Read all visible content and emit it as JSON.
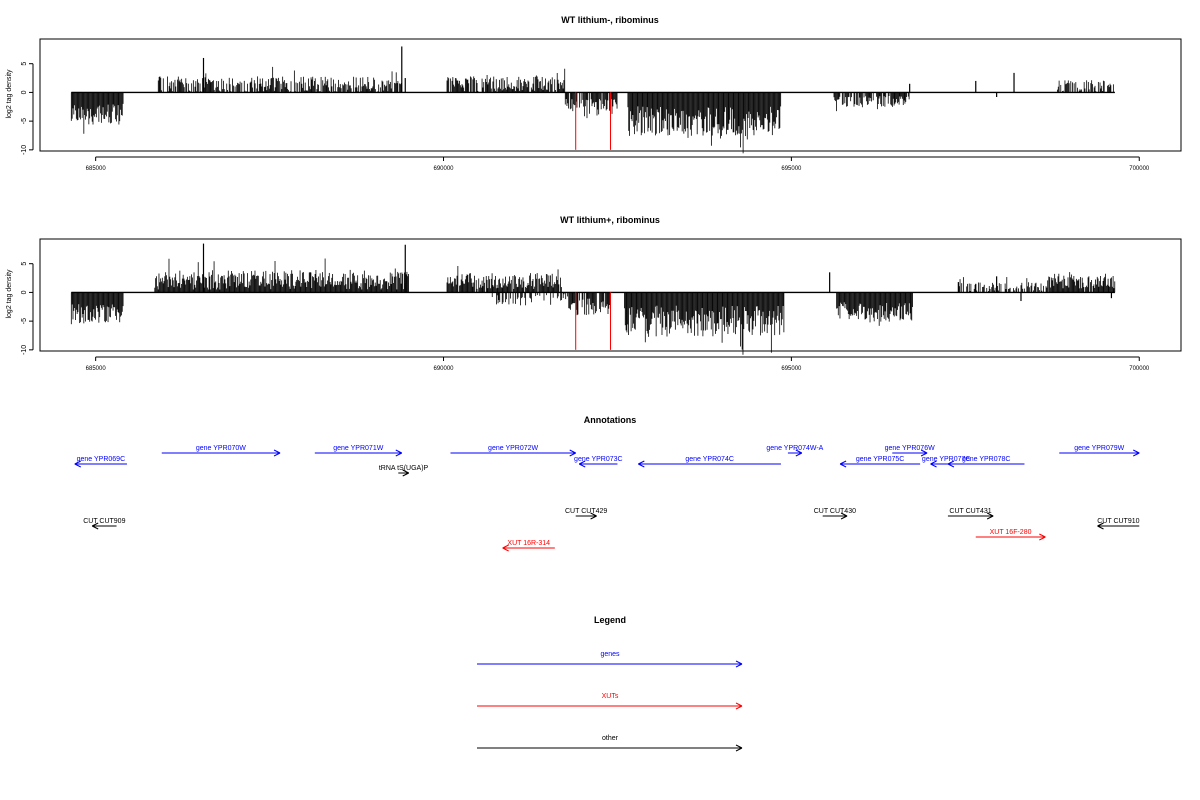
{
  "colors": {
    "genes": "#0000ff",
    "xut": "#ff0000",
    "other": "#000000",
    "axis": "#000000",
    "marker": "#ff0000"
  },
  "chart_data": [
    {
      "type": "bar",
      "title": "WT lithium-, ribominus",
      "ylabel": "log2 tag density",
      "xlim": [
        684200,
        700600
      ],
      "ylim": [
        -10.2,
        9.3
      ],
      "xticks": [
        685000,
        690000,
        695000,
        700000
      ],
      "xtick_labels": [
        "685000",
        "690000",
        "695000",
        "700000"
      ],
      "yticks": [
        5,
        0,
        -5,
        -10
      ],
      "ytick_labels": [
        "5",
        "0",
        "-5",
        "-10"
      ],
      "baseline_range": [
        684650,
        699650
      ],
      "markers": [
        691900,
        692400
      ],
      "segments": [
        {
          "start": 684650,
          "end": 685400,
          "sign": -1,
          "mean": 3.8,
          "amp": 1.8,
          "density": 1.0
        },
        {
          "start": 685900,
          "end": 689400,
          "sign": 1,
          "mean": 1.4,
          "amp": 1.4,
          "density": 0.8
        },
        {
          "start": 690050,
          "end": 691750,
          "sign": 1,
          "mean": 1.5,
          "amp": 1.3,
          "density": 0.85
        },
        {
          "start": 691750,
          "end": 692500,
          "sign": -1,
          "mean": 2.0,
          "amp": 1.3,
          "density": 0.8
        },
        {
          "start": 692650,
          "end": 694850,
          "sign": -1,
          "mean": 5.0,
          "amp": 2.6,
          "density": 1.0
        },
        {
          "start": 695600,
          "end": 696700,
          "sign": -1,
          "mean": 1.6,
          "amp": 1.0,
          "density": 0.8
        },
        {
          "start": 698800,
          "end": 699650,
          "sign": 1,
          "mean": 1.2,
          "amp": 1.0,
          "density": 0.6
        }
      ],
      "spikes": [
        {
          "x": 686550,
          "y": 6.0
        },
        {
          "x": 689400,
          "y": 8.0
        },
        {
          "x": 689450,
          "y": 2.5
        },
        {
          "x": 696700,
          "y": 1.5
        },
        {
          "x": 697650,
          "y": 2.0
        },
        {
          "x": 698200,
          "y": 3.4
        },
        {
          "x": 697950,
          "y": -0.8
        }
      ]
    },
    {
      "type": "bar",
      "title": "WT lithium+, ribominus",
      "ylabel": "log2 tag density",
      "xlim": [
        684200,
        700600
      ],
      "ylim": [
        -10.2,
        9.3
      ],
      "xticks": [
        685000,
        690000,
        695000,
        700000
      ],
      "xtick_labels": [
        "685000",
        "690000",
        "695000",
        "700000"
      ],
      "yticks": [
        5,
        0,
        -5,
        -10
      ],
      "ytick_labels": [
        "5",
        "0",
        "-5",
        "-10"
      ],
      "baseline_range": [
        684650,
        699650
      ],
      "markers": [
        691900,
        692400
      ],
      "segments": [
        {
          "start": 684650,
          "end": 685400,
          "sign": -1,
          "mean": 3.8,
          "amp": 1.8,
          "density": 1.0
        },
        {
          "start": 685850,
          "end": 689500,
          "sign": 1,
          "mean": 2.2,
          "amp": 1.7,
          "density": 1.0
        },
        {
          "start": 690050,
          "end": 691700,
          "sign": 1,
          "mean": 2.0,
          "amp": 1.4,
          "density": 0.95
        },
        {
          "start": 690700,
          "end": 691800,
          "sign": -1,
          "mean": 1.3,
          "amp": 1.0,
          "density": 0.5
        },
        {
          "start": 691800,
          "end": 692400,
          "sign": -1,
          "mean": 2.5,
          "amp": 1.5,
          "density": 0.8
        },
        {
          "start": 692600,
          "end": 694900,
          "sign": -1,
          "mean": 5.0,
          "amp": 2.7,
          "density": 1.0
        },
        {
          "start": 695650,
          "end": 696750,
          "sign": -1,
          "mean": 3.4,
          "amp": 1.7,
          "density": 1.0
        },
        {
          "start": 697400,
          "end": 698700,
          "sign": 1,
          "mean": 1.0,
          "amp": 0.8,
          "density": 0.6
        },
        {
          "start": 698700,
          "end": 699650,
          "sign": 1,
          "mean": 2.0,
          "amp": 1.3,
          "density": 0.95
        }
      ],
      "spikes": [
        {
          "x": 686550,
          "y": 8.5
        },
        {
          "x": 689450,
          "y": 8.3
        },
        {
          "x": 695550,
          "y": 3.5
        },
        {
          "x": 697400,
          "y": 1.8
        },
        {
          "x": 697650,
          "y": 1.5
        },
        {
          "x": 697950,
          "y": 2.8
        },
        {
          "x": 698300,
          "y": -1.5
        },
        {
          "x": 699600,
          "y": -1.0
        }
      ]
    }
  ],
  "annotations": {
    "title": "Annotations",
    "xlim": [
      684200,
      700600
    ],
    "features": [
      {
        "label": "gene YPR069C",
        "kind": "genes",
        "start": 684700,
        "end": 685450,
        "strand": "-",
        "row": 2
      },
      {
        "label": "gene YPR070W",
        "kind": "genes",
        "start": 685950,
        "end": 687650,
        "strand": "+",
        "row": 1
      },
      {
        "label": "gene YPR071W",
        "kind": "genes",
        "start": 688150,
        "end": 689400,
        "strand": "+",
        "row": 1
      },
      {
        "label": "tRNA tS(UGA)P",
        "kind": "other",
        "start": 689350,
        "end": 689500,
        "strand": "+",
        "row": 3
      },
      {
        "label": "gene YPR072W",
        "kind": "genes",
        "start": 690100,
        "end": 691900,
        "strand": "+",
        "row": 1
      },
      {
        "label": "gene YPR073C",
        "kind": "genes",
        "start": 691950,
        "end": 692500,
        "strand": "-",
        "row": 2
      },
      {
        "label": "gene YPR074C",
        "kind": "genes",
        "start": 692800,
        "end": 694850,
        "strand": "-",
        "row": 2
      },
      {
        "label": "gene YPR074W-A",
        "kind": "genes",
        "start": 694950,
        "end": 695150,
        "strand": "+",
        "row": 1
      },
      {
        "label": "gene YPR075C",
        "kind": "genes",
        "start": 695700,
        "end": 696850,
        "strand": "-",
        "row": 2
      },
      {
        "label": "gene YPR076W",
        "kind": "genes",
        "start": 696450,
        "end": 696950,
        "strand": "+",
        "row": 1
      },
      {
        "label": "gene YPR077C",
        "kind": "genes",
        "start": 697000,
        "end": 697450,
        "strand": "-",
        "row": 2
      },
      {
        "label": "gene YPR078C",
        "kind": "genes",
        "start": 697250,
        "end": 698350,
        "strand": "-",
        "row": 2
      },
      {
        "label": "gene YPR079W",
        "kind": "genes",
        "start": 698850,
        "end": 700000,
        "strand": "+",
        "row": 1
      },
      {
        "label": "CUT CUT909",
        "kind": "other",
        "start": 684950,
        "end": 685300,
        "strand": "-",
        "row": 5
      },
      {
        "label": "CUT CUT429",
        "kind": "other",
        "start": 691900,
        "end": 692200,
        "strand": "+",
        "row": 4
      },
      {
        "label": "CUT CUT430",
        "kind": "other",
        "start": 695450,
        "end": 695800,
        "strand": "+",
        "row": 4
      },
      {
        "label": "CUT CUT431",
        "kind": "other",
        "start": 697250,
        "end": 697900,
        "strand": "+",
        "row": 4
      },
      {
        "label": "CUT CUT910",
        "kind": "other",
        "start": 699400,
        "end": 700000,
        "strand": "-",
        "row": 5
      },
      {
        "label": "XUT 16R-314",
        "kind": "xut",
        "start": 690850,
        "end": 691600,
        "strand": "-",
        "row": 7
      },
      {
        "label": "XUT 16F-280",
        "kind": "xut",
        "start": 697650,
        "end": 698650,
        "strand": "+",
        "row": 6
      }
    ]
  },
  "legend": {
    "title": "Legend",
    "items": [
      {
        "label": "genes",
        "kind": "genes"
      },
      {
        "label": "XUTs",
        "kind": "xut"
      },
      {
        "label": "other",
        "kind": "other"
      }
    ]
  }
}
